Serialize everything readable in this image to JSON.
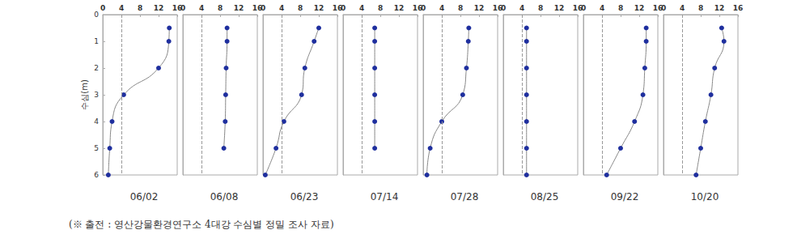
{
  "chart_data": [
    {
      "type": "line",
      "title": "06/02",
      "ylabel": "수심(m)",
      "x": [
        14.3,
        14.2,
        12,
        4.5,
        2,
        1.5,
        1.2
      ],
      "y": [
        0.5,
        1,
        2,
        3,
        4,
        5,
        6
      ],
      "color": "#1f2f9e",
      "xlim": [
        0,
        16
      ],
      "xticks": [
        0,
        4,
        8,
        12,
        16
      ],
      "ylim": [
        0,
        6
      ],
      "yticks": [
        0,
        1,
        2,
        3,
        4,
        5,
        6
      ],
      "reference_x": 4,
      "tick_labels": true,
      "grid": false,
      "marker": "circle"
    },
    {
      "type": "line",
      "title": "06/08",
      "x": [
        9.5,
        9.5,
        9.3,
        9.2,
        9.1,
        8.8
      ],
      "y": [
        0.5,
        1,
        2,
        3,
        4,
        5
      ],
      "color": "#1f2f9e",
      "xlim": [
        0,
        16
      ],
      "xticks": [
        0,
        4,
        8,
        12,
        16
      ],
      "ylim": [
        0,
        6
      ],
      "yticks": [
        0,
        1,
        2,
        3,
        4,
        5,
        6
      ],
      "reference_x": 4,
      "tick_labels": "x",
      "grid": false,
      "marker": "circle"
    },
    {
      "type": "line",
      "title": "06/23",
      "x": [
        12,
        11,
        9,
        8.3,
        4.5,
        2.8,
        0.5
      ],
      "y": [
        0.5,
        1,
        2,
        3,
        4,
        5,
        6
      ],
      "color": "#1f2f9e",
      "xlim": [
        0,
        16
      ],
      "xticks": [
        0,
        4,
        8,
        12,
        16
      ],
      "ylim": [
        0,
        6
      ],
      "yticks": [
        0,
        1,
        2,
        3,
        4,
        5,
        6
      ],
      "reference_x": 4,
      "tick_labels": "x",
      "grid": false,
      "marker": "circle"
    },
    {
      "type": "line",
      "title": "07/14",
      "x": [
        6.8,
        6.8,
        6.8,
        6.8,
        6.8,
        6.8
      ],
      "y": [
        0.5,
        1,
        2,
        3,
        4,
        5
      ],
      "color": "#1f2f9e",
      "xlim": [
        0,
        16
      ],
      "xticks": [
        0,
        4,
        8,
        12,
        16
      ],
      "ylim": [
        0,
        6
      ],
      "yticks": [
        0,
        1,
        2,
        3,
        4,
        5,
        6
      ],
      "reference_x": 4,
      "tick_labels": "x",
      "grid": false,
      "marker": "circle"
    },
    {
      "type": "line",
      "title": "07/28",
      "x": [
        9.8,
        9.7,
        9.3,
        8.5,
        4,
        1.5,
        0.8
      ],
      "y": [
        0.5,
        1,
        2,
        3,
        4,
        5,
        6
      ],
      "color": "#1f2f9e",
      "xlim": [
        0,
        16
      ],
      "xticks": [
        0,
        4,
        8,
        12,
        16
      ],
      "ylim": [
        0,
        6
      ],
      "yticks": [
        0,
        1,
        2,
        3,
        4,
        5,
        6
      ],
      "reference_x": 4,
      "tick_labels": "x",
      "grid": false,
      "marker": "circle"
    },
    {
      "type": "line",
      "title": "08/25",
      "x": [
        5,
        5,
        5,
        5,
        5,
        5,
        5
      ],
      "y": [
        0.5,
        1,
        2,
        3,
        4,
        5,
        6
      ],
      "color": "#1f2f9e",
      "xlim": [
        0,
        16
      ],
      "xticks": [
        0,
        4,
        8,
        12,
        16
      ],
      "ylim": [
        0,
        6
      ],
      "yticks": [
        0,
        1,
        2,
        3,
        4,
        5,
        6
      ],
      "reference_x": 4,
      "tick_labels": "x",
      "grid": false,
      "marker": "circle"
    },
    {
      "type": "line",
      "title": "09/22",
      "x": [
        13.5,
        13.5,
        13.2,
        12.8,
        11,
        8,
        5
      ],
      "y": [
        0.5,
        1,
        2,
        3,
        4,
        5,
        6
      ],
      "color": "#1f2f9e",
      "xlim": [
        0,
        16
      ],
      "xticks": [
        0,
        4,
        8,
        12,
        16
      ],
      "ylim": [
        0,
        6
      ],
      "yticks": [
        0,
        1,
        2,
        3,
        4,
        5,
        6
      ],
      "reference_x": 4,
      "tick_labels": "x",
      "grid": false,
      "marker": "circle"
    },
    {
      "type": "line",
      "title": "10/20",
      "x": [
        12.5,
        13,
        11,
        10.2,
        9,
        8,
        7
      ],
      "y": [
        0.5,
        1,
        2,
        3,
        4,
        5,
        6
      ],
      "color": "#1f2f9e",
      "xlim": [
        0,
        16
      ],
      "xticks": [
        0,
        4,
        8,
        12,
        16
      ],
      "ylim": [
        0,
        6
      ],
      "yticks": [
        0,
        1,
        2,
        3,
        4,
        5,
        6
      ],
      "reference_x": 4,
      "tick_labels": "x",
      "grid": false,
      "marker": "circle"
    }
  ],
  "note": "(※ 출전 : 영산강물환경연구소 4대강 수심별 정밀 조사 자료)"
}
